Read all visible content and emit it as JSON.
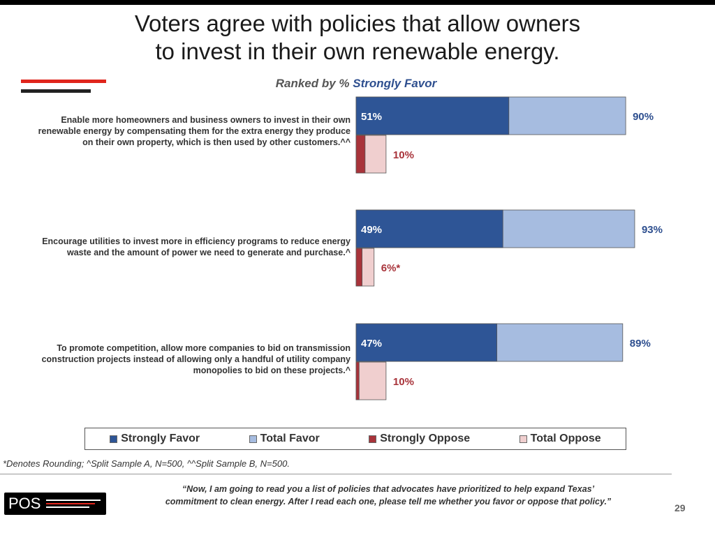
{
  "title": [
    "Voters agree with policies that allow owners",
    "to invest in their own renewable energy."
  ],
  "subtitle": {
    "prefix": "Ranked by % ",
    "highlight": "Strongly Favor"
  },
  "colors": {
    "strongly_favor": "#2e5596",
    "total_favor": "#a6bce0",
    "strongly_oppose": "#a8333a",
    "total_oppose": "#f0cfcf",
    "favor_text": "#2e4f8f",
    "oppose_text": "#a8333a"
  },
  "chart_data": {
    "type": "bar",
    "categories": [
      [
        "Enable more homeowners and business owners to invest in their own",
        "renewable energy by compensating them for the extra energy they produce",
        "on their own property, which is then used by other customers.^^"
      ],
      [
        "Encourage utilities to invest more in efficiency programs to reduce energy",
        "waste and the amount of power we need to generate and purchase.^"
      ],
      [
        "To promote competition, allow more companies to bid on transmission",
        "construction projects instead of allowing only a handful of utility company",
        "monopolies to bid on these projects.^"
      ]
    ],
    "series": [
      {
        "name": "Strongly Favor",
        "values": [
          51,
          49,
          47
        ],
        "labels": [
          "51%",
          "49%",
          "47%"
        ]
      },
      {
        "name": "Total Favor",
        "values": [
          90,
          93,
          89
        ],
        "labels": [
          "90%",
          "93%",
          "89%"
        ]
      },
      {
        "name": "Strongly Oppose",
        "values": [
          3,
          2,
          1
        ]
      },
      {
        "name": "Total Oppose",
        "values": [
          10,
          6,
          10
        ],
        "labels": [
          "10%",
          "6%*",
          "10%"
        ]
      }
    ],
    "xlim": [
      0,
      100
    ],
    "legend_position": "bottom"
  },
  "footnote": "*Denotes Rounding; ^Split Sample A, N=500, ^^Split Sample B, N=500.",
  "question": [
    "“Now, I am going to read you a list of policies that advocates have prioritized to help expand Texas’",
    "commitment to clean energy. After I read each one, please tell me whether you favor or oppose that policy.”"
  ],
  "logo_text": "POS",
  "page_number": "29"
}
